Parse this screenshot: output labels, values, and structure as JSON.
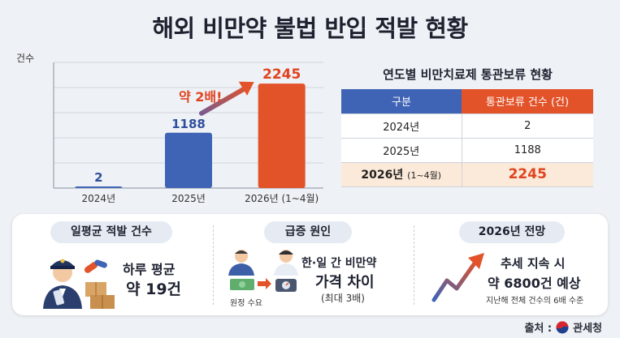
{
  "title": "해외 비만약 불법 반입 적발 현황",
  "chart_data": {
    "type": "bar",
    "ylabel": "건수",
    "categories": [
      "2024년",
      "2025년",
      "2026년 (1~4월)"
    ],
    "values": [
      2,
      1188,
      2245
    ],
    "ylim": [
      0,
      2700
    ],
    "grid": true,
    "colors": [
      "#3f63b5",
      "#3f63b5",
      "#e2532a"
    ],
    "annotation": "약 2배!"
  },
  "table": {
    "title": "연도별 비만치료제 통관보류 현황",
    "headers": [
      "구분",
      "통관보류 건수 (건)"
    ],
    "rows": [
      {
        "year": "2024년",
        "count": "2"
      },
      {
        "year": "2025년",
        "count": "1188"
      },
      {
        "year": "2026년",
        "year_note": "(1~4월)",
        "count": "2245"
      }
    ]
  },
  "panel": {
    "daily": {
      "label": "일평균 적발 건수",
      "line1": "하루 평균",
      "line2": "약 19건"
    },
    "cause": {
      "label": "급증 원인",
      "demand": "원정 수요",
      "line1": "한·일 간 비만약",
      "line2": "가격 차이",
      "line3": "(최대 3배)"
    },
    "outlook": {
      "label": "2026년 전망",
      "line1": "추세 지속 시",
      "line2": "약 6800건 예상",
      "line3": "지난해 전체 건수의 6배 수준"
    }
  },
  "source": {
    "prefix": "출처 :",
    "org": "관세청"
  }
}
